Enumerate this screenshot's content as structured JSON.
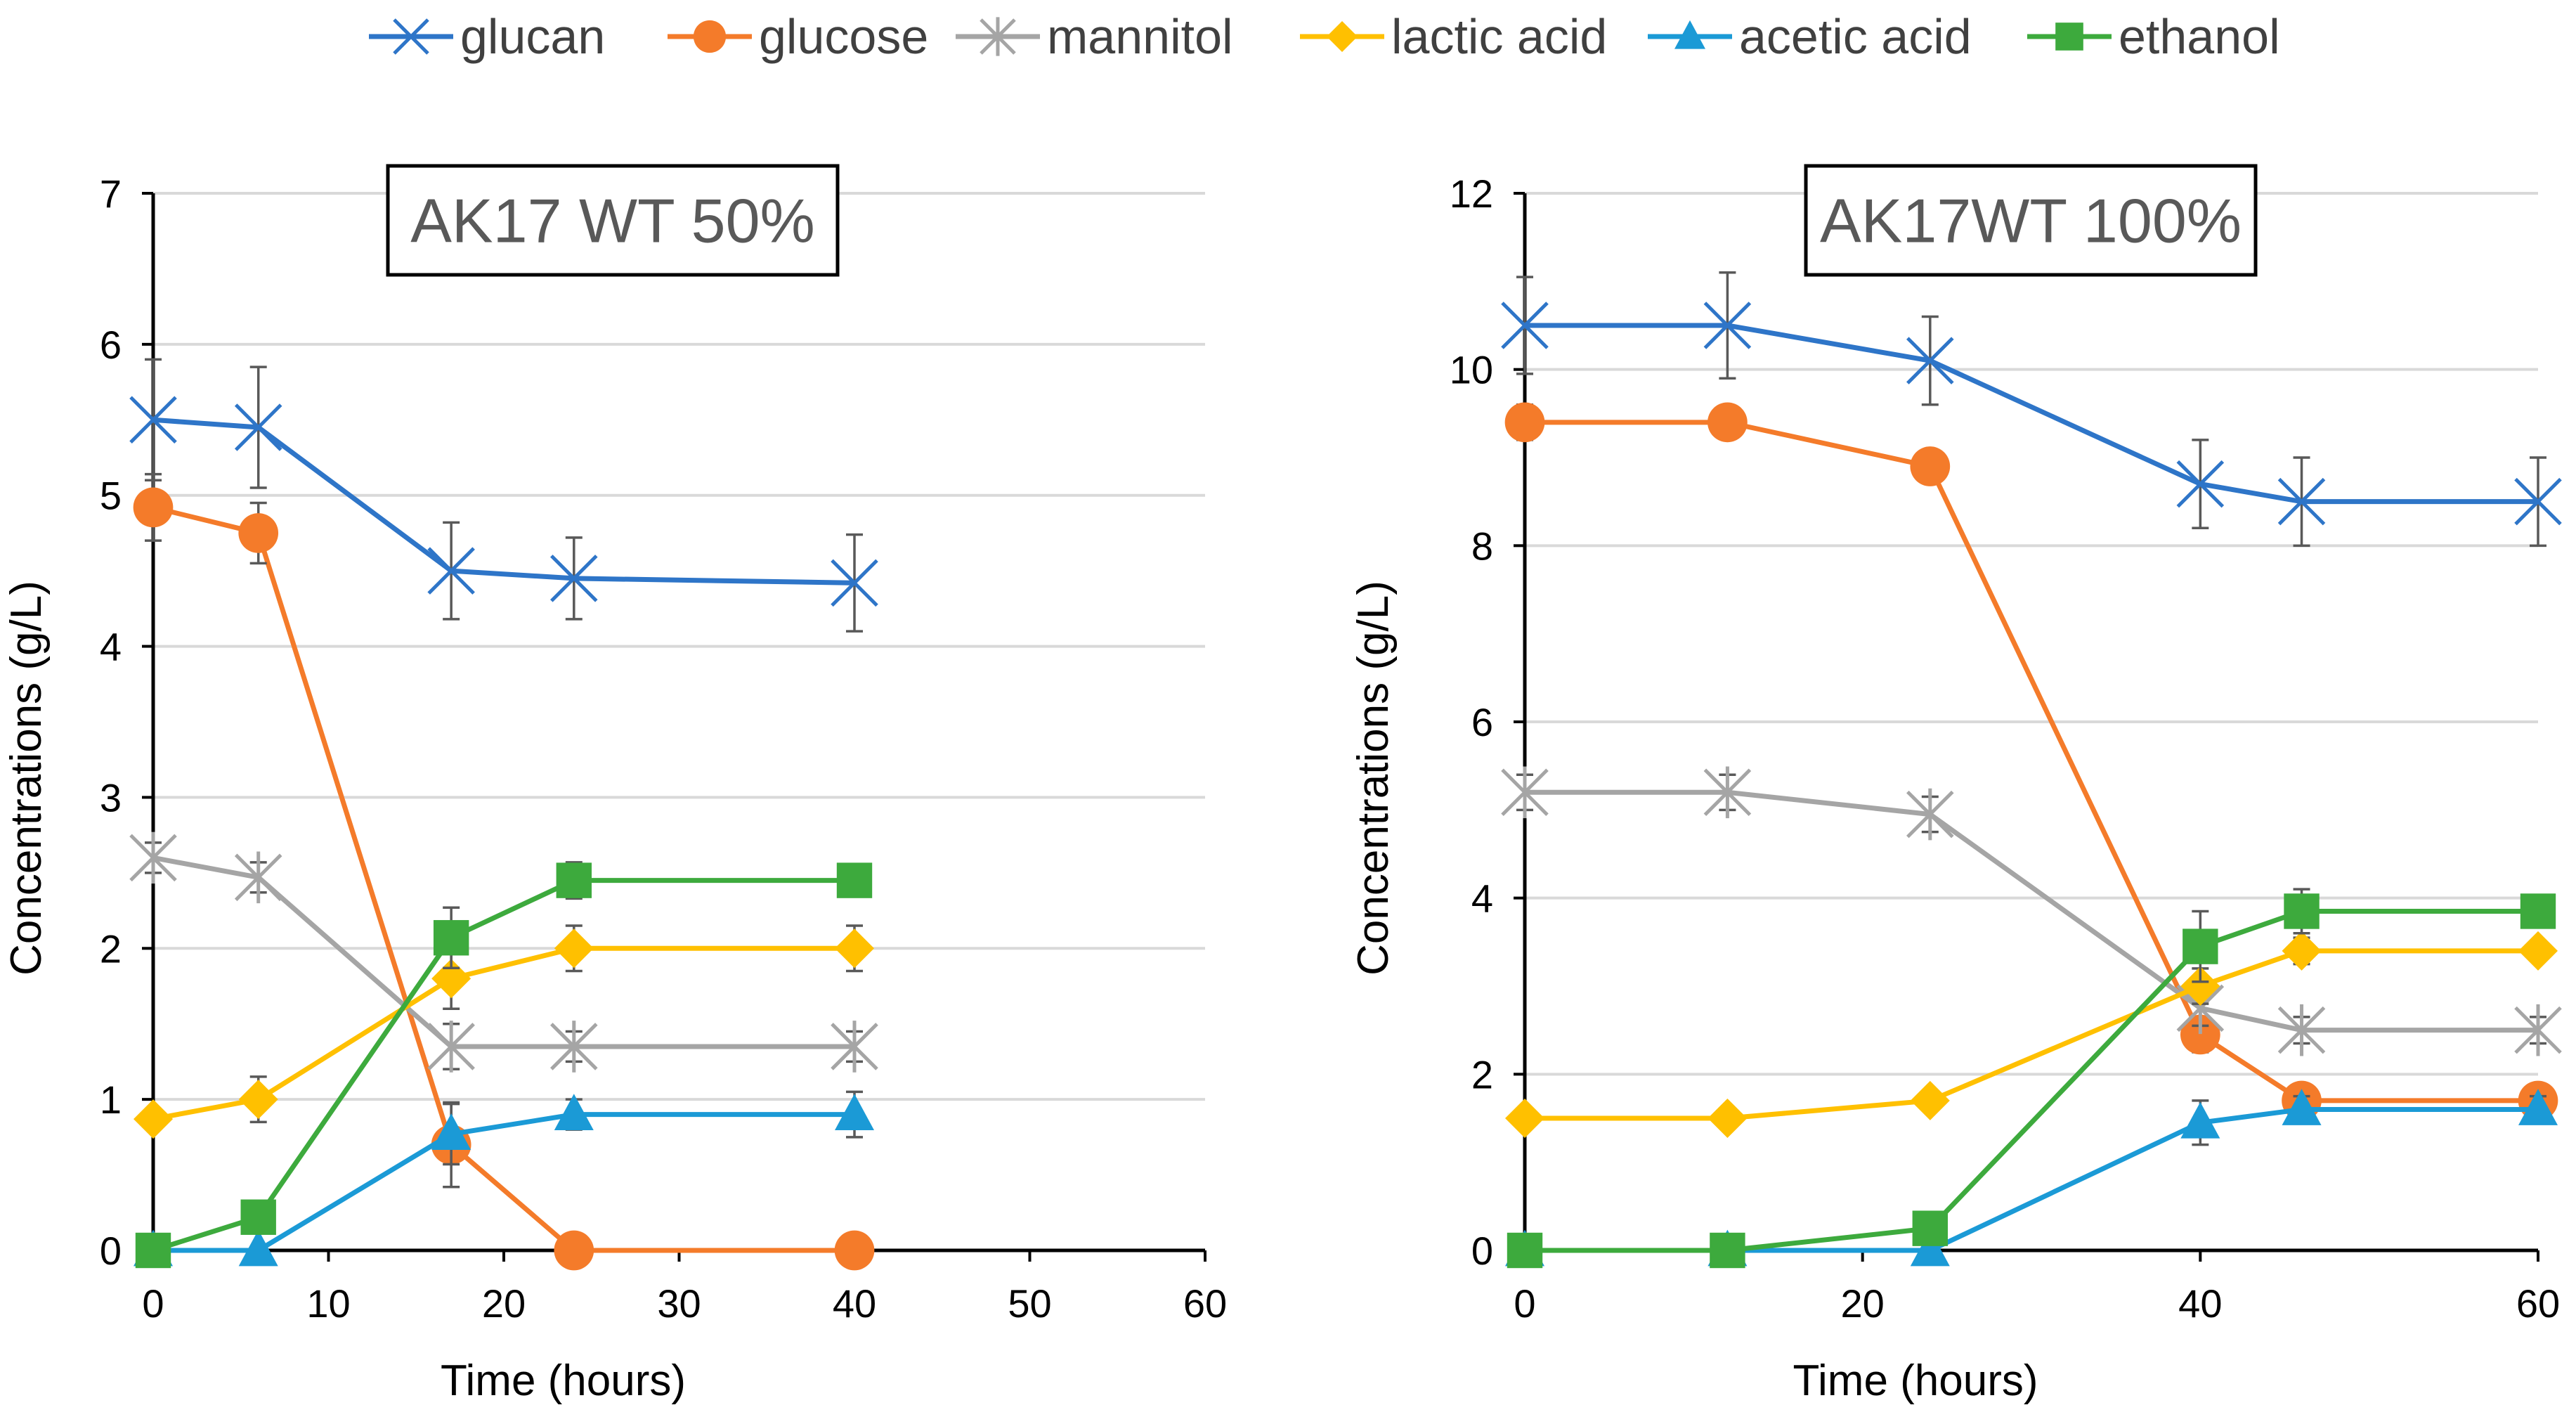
{
  "legend": [
    {
      "name": "glucan",
      "color": "#2E75C8",
      "marker": "x"
    },
    {
      "name": "glucose",
      "color": "#F47B2A",
      "marker": "circle"
    },
    {
      "name": "mannitol",
      "color": "#A5A5A5",
      "marker": "star"
    },
    {
      "name": "lactic acid",
      "color": "#FFC000",
      "marker": "diamond"
    },
    {
      "name": "acetic acid",
      "color": "#1B9AD6",
      "marker": "triangle"
    },
    {
      "name": "ethanol",
      "color": "#3DAA3D",
      "marker": "square"
    }
  ],
  "chart_data": [
    {
      "type": "line",
      "title": "AK17 WT 50%",
      "xlabel": "Time (hours)",
      "ylabel": "Concentrations (g/L)",
      "xlim": [
        0,
        60
      ],
      "ylim": [
        0,
        7
      ],
      "xticks": [
        0,
        10,
        20,
        30,
        40,
        50,
        60
      ],
      "yticks": [
        0,
        1,
        2,
        3,
        4,
        5,
        6,
        7
      ],
      "grid": true,
      "series": [
        {
          "name": "glucan",
          "x": [
            0,
            6,
            17,
            24,
            40
          ],
          "values": [
            5.5,
            5.45,
            4.5,
            4.45,
            4.42
          ],
          "error": [
            0.4,
            0.4,
            0.32,
            0.27,
            0.32
          ]
        },
        {
          "name": "glucose",
          "x": [
            0,
            6,
            17,
            24,
            40
          ],
          "values": [
            4.92,
            4.75,
            0.7,
            0.0,
            0.0
          ],
          "error": [
            0.22,
            0.2,
            0.28,
            0,
            0
          ]
        },
        {
          "name": "mannitol",
          "x": [
            0,
            6,
            17,
            24,
            40
          ],
          "values": [
            2.6,
            2.47,
            1.35,
            1.35,
            1.35
          ],
          "error": [
            0.1,
            0.1,
            0.15,
            0.1,
            0.1
          ]
        },
        {
          "name": "lactic acid",
          "x": [
            0,
            6,
            17,
            24,
            40
          ],
          "values": [
            0.87,
            1.0,
            1.8,
            2.0,
            2.0
          ],
          "error": [
            0.05,
            0.15,
            0.2,
            0.15,
            0.15
          ]
        },
        {
          "name": "acetic acid",
          "x": [
            0,
            6,
            17,
            24,
            40
          ],
          "values": [
            0.0,
            0.0,
            0.77,
            0.9,
            0.9
          ],
          "error": [
            0,
            0,
            0.2,
            0.1,
            0.15
          ]
        },
        {
          "name": "ethanol",
          "x": [
            0,
            6,
            17,
            24,
            40
          ],
          "values": [
            0.0,
            0.22,
            2.07,
            2.45,
            2.45
          ],
          "error": [
            0,
            0.05,
            0.2,
            0.12,
            0.08
          ]
        }
      ]
    },
    {
      "type": "line",
      "title": "AK17WT 100%",
      "xlabel": "Time (hours)",
      "ylabel": "Concentrations (g/L)",
      "xlim": [
        0,
        60
      ],
      "ylim": [
        0,
        12
      ],
      "xticks": [
        0,
        20,
        40,
        60
      ],
      "yticks": [
        0,
        2,
        4,
        6,
        8,
        10,
        12
      ],
      "grid": true,
      "series": [
        {
          "name": "glucan",
          "x": [
            0,
            12,
            24,
            40,
            46,
            60
          ],
          "values": [
            10.5,
            10.5,
            10.1,
            8.7,
            8.5,
            8.5
          ],
          "error": [
            0.55,
            0.6,
            0.5,
            0.5,
            0.5,
            0.5
          ]
        },
        {
          "name": "glucose",
          "x": [
            0,
            12,
            24,
            40,
            46,
            60
          ],
          "values": [
            9.4,
            9.4,
            8.9,
            2.45,
            1.7,
            1.7
          ],
          "error": [
            0.2,
            0.15,
            0.15,
            0.2,
            0.12,
            0.12
          ]
        },
        {
          "name": "mannitol",
          "x": [
            0,
            12,
            24,
            40,
            46,
            60
          ],
          "values": [
            5.2,
            5.2,
            4.95,
            2.75,
            2.5,
            2.5
          ],
          "error": [
            0.2,
            0.2,
            0.2,
            0.2,
            0.15,
            0.15
          ]
        },
        {
          "name": "lactic acid",
          "x": [
            0,
            12,
            24,
            40,
            46,
            60
          ],
          "values": [
            1.5,
            1.5,
            1.7,
            3.0,
            3.4,
            3.4
          ],
          "error": [
            0.05,
            0.05,
            0.1,
            0.2,
            0.15,
            0.1
          ]
        },
        {
          "name": "acetic acid",
          "x": [
            0,
            12,
            24,
            40,
            46,
            60
          ],
          "values": [
            0.0,
            0.0,
            0.0,
            1.45,
            1.6,
            1.6
          ],
          "error": [
            0,
            0,
            0,
            0.25,
            0.15,
            0.15
          ]
        },
        {
          "name": "ethanol",
          "x": [
            0,
            12,
            24,
            40,
            46,
            60
          ],
          "values": [
            0.0,
            0.0,
            0.25,
            3.45,
            3.85,
            3.85
          ],
          "error": [
            0,
            0,
            0.1,
            0.4,
            0.25,
            0.15
          ]
        }
      ]
    }
  ]
}
